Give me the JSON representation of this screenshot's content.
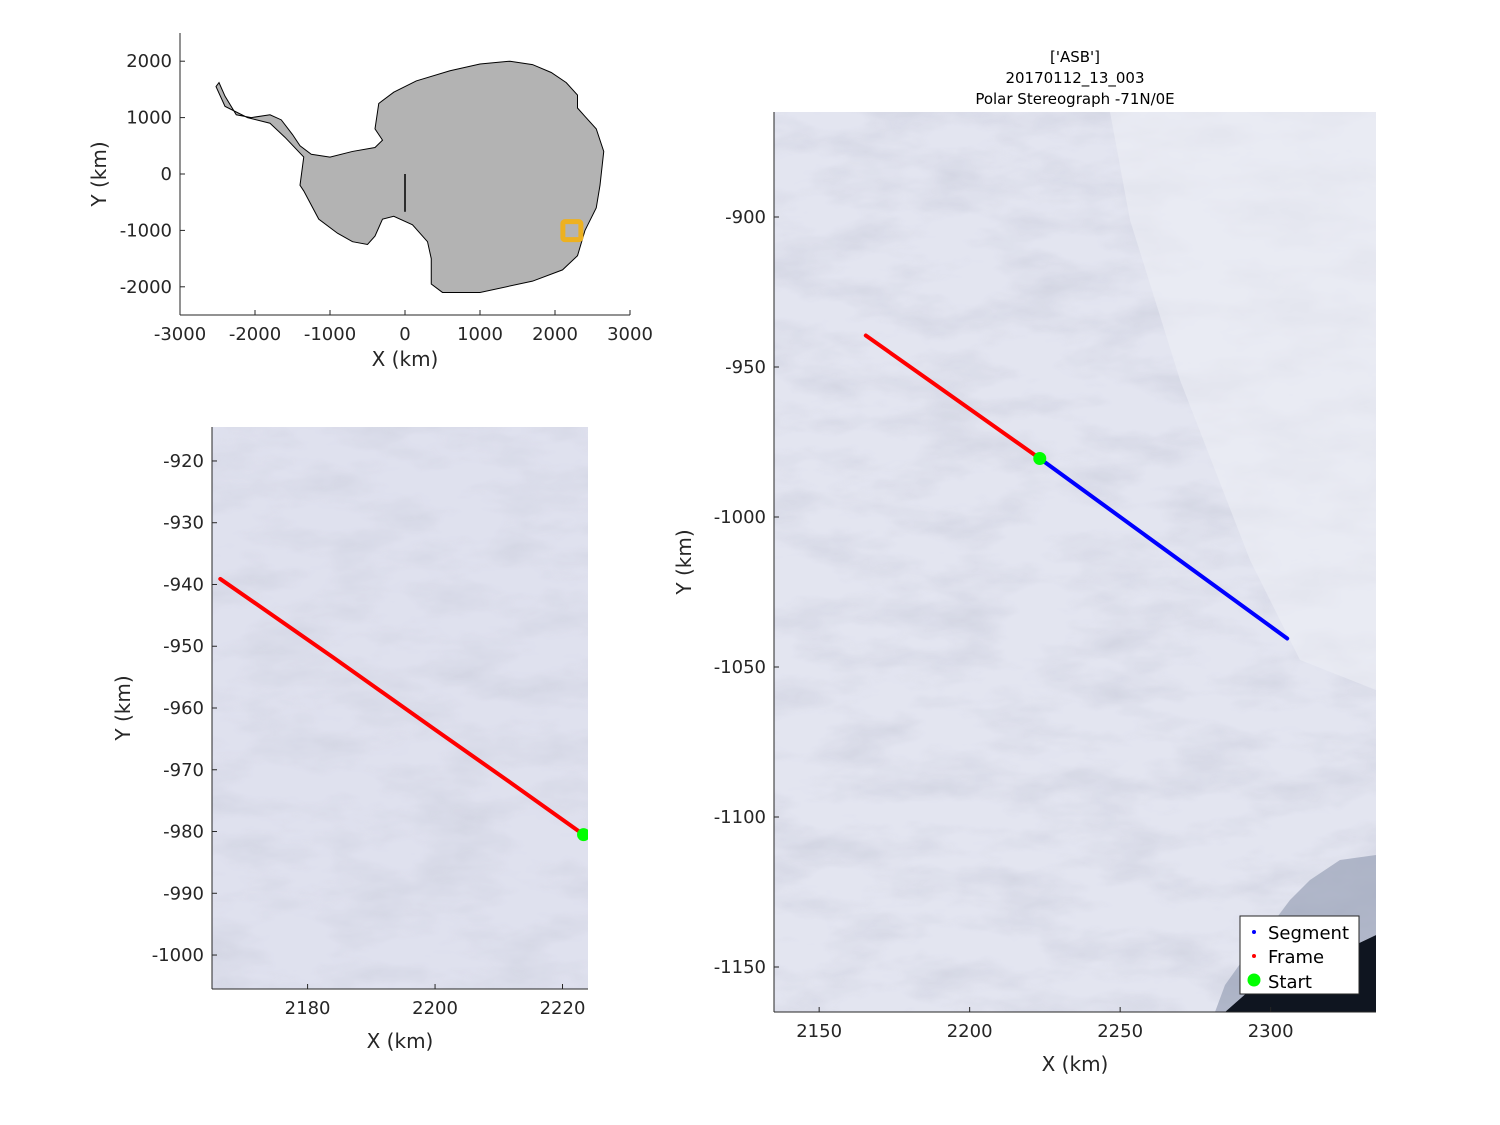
{
  "figure": {
    "title_lines": [
      "['ASB']",
      "20170112_13_003",
      "Polar Stereograph -71N/0E"
    ]
  },
  "colors": {
    "land": "#b3b3b3",
    "coast": "#000000",
    "marker": "#edb120",
    "segment": "#0000ff",
    "frame": "#ff0000",
    "start": "#00ff00",
    "imagery": "#dfe1ee"
  },
  "chart_data": [
    {
      "id": "overview",
      "type": "map",
      "xlabel": "X (km)",
      "ylabel": "Y (km)",
      "xlim": [
        -3000,
        3000
      ],
      "ylim": [
        -2500,
        2500
      ],
      "xticks": [
        "-3000",
        "-2000",
        "-1000",
        "0",
        "1000",
        "2000",
        "3000"
      ],
      "yticks": [
        "-2000",
        "-1000",
        "0",
        "1000",
        "2000"
      ],
      "frame_location_km": [
        2225,
        -1005
      ],
      "coastline_km": [
        [
          -2480,
          1620
        ],
        [
          -2400,
          1380
        ],
        [
          -2250,
          1050
        ],
        [
          -2050,
          1000
        ],
        [
          -1800,
          1050
        ],
        [
          -1650,
          960
        ],
        [
          -1500,
          700
        ],
        [
          -1400,
          500
        ],
        [
          -1250,
          350
        ],
        [
          -1000,
          300
        ],
        [
          -700,
          400
        ],
        [
          -400,
          470
        ],
        [
          -300,
          600
        ],
        [
          -400,
          800
        ],
        [
          -350,
          1250
        ],
        [
          -150,
          1450
        ],
        [
          150,
          1650
        ],
        [
          600,
          1830
        ],
        [
          1000,
          1950
        ],
        [
          1400,
          2000
        ],
        [
          1700,
          1940
        ],
        [
          1950,
          1800
        ],
        [
          2150,
          1620
        ],
        [
          2300,
          1400
        ],
        [
          2300,
          1170
        ],
        [
          2400,
          1020
        ],
        [
          2550,
          800
        ],
        [
          2650,
          400
        ],
        [
          2600,
          -200
        ],
        [
          2550,
          -600
        ],
        [
          2400,
          -1000
        ],
        [
          2300,
          -1450
        ],
        [
          2100,
          -1700
        ],
        [
          1700,
          -1900
        ],
        [
          1000,
          -2100
        ],
        [
          500,
          -2100
        ],
        [
          350,
          -1950
        ],
        [
          350,
          -1500
        ],
        [
          300,
          -1200
        ],
        [
          100,
          -900
        ],
        [
          -150,
          -750
        ],
        [
          -300,
          -800
        ],
        [
          -400,
          -1100
        ],
        [
          -500,
          -1250
        ],
        [
          -700,
          -1200
        ],
        [
          -900,
          -1050
        ],
        [
          -1150,
          -800
        ],
        [
          -1350,
          -300
        ],
        [
          -1400,
          -200
        ],
        [
          -1350,
          300
        ],
        [
          -1600,
          650
        ],
        [
          -1800,
          900
        ],
        [
          -2100,
          1000
        ],
        [
          -2400,
          1200
        ],
        [
          -2520,
          1550
        ]
      ]
    },
    {
      "id": "frame_zoom",
      "type": "map",
      "xlabel": "X (km)",
      "ylabel": "Y (km)",
      "xlim": [
        2165,
        2224
      ],
      "ylim": [
        -1005.5,
        -914.5
      ],
      "xticks": [
        "2180",
        "2200",
        "2220"
      ],
      "yticks": [
        "-920",
        "-930",
        "-940",
        "-950",
        "-960",
        "-970",
        "-980",
        "-990",
        "-1000"
      ],
      "frame_track": {
        "x": [
          2166.3,
          2184,
          2200,
          2212,
          2223.3
        ],
        "y": [
          -939.1,
          -951.8,
          -963.5,
          -972.2,
          -980.5
        ]
      },
      "start": {
        "x": 2223.3,
        "y": -980.5
      }
    },
    {
      "id": "segment_map",
      "type": "map",
      "xlabel": "X (km)",
      "ylabel": "Y (km)",
      "xlim": [
        2135,
        2335
      ],
      "ylim": [
        -1165,
        -865
      ],
      "xticks": [
        "2150",
        "2200",
        "2250",
        "2300"
      ],
      "yticks": [
        "-900",
        "-950",
        "-1000",
        "-1050",
        "-1100",
        "-1150"
      ],
      "frame_track": {
        "x": [
          2165.5,
          2223.3
        ],
        "y": [
          -939.5,
          -980.5
        ]
      },
      "segment_track": {
        "x": [
          2223.3,
          2305.5
        ],
        "y": [
          -980.5,
          -1040.5
        ]
      },
      "start": {
        "x": 2223.3,
        "y": -980.5
      },
      "legend": [
        "Segment",
        "Frame",
        "Start"
      ]
    }
  ]
}
